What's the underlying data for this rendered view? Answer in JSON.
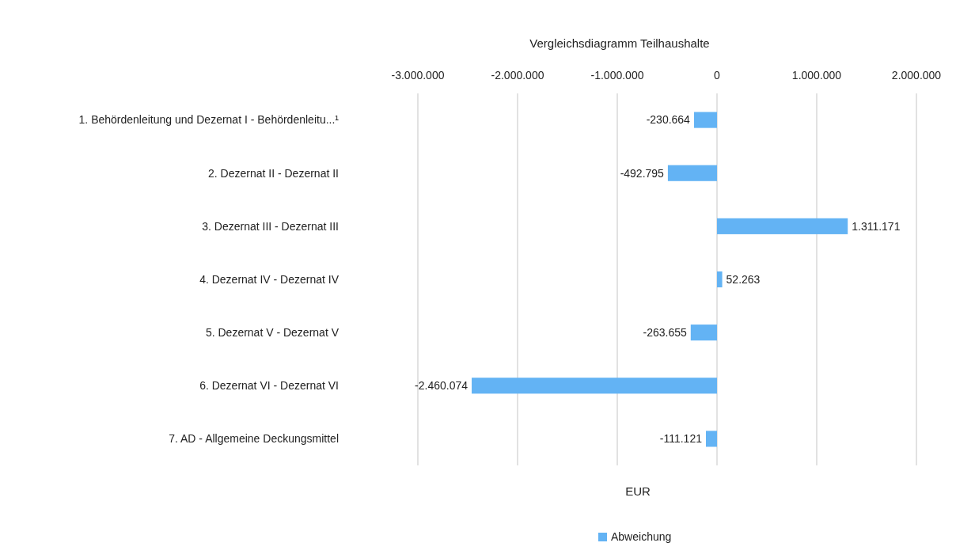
{
  "chart_data": {
    "type": "bar",
    "orientation": "horizontal",
    "title": "Vergleichsdiagramm Teilhaushalte",
    "xlabel": "EUR",
    "categories": [
      "1. Behördenleitung und Dezernat I - Behördenleitu...¹",
      "2. Dezernat II - Dezernat II",
      "3. Dezernat III - Dezernat III",
      "4. Dezernat IV - Dezernat IV",
      "5. Dezernat V - Dezernat V",
      "6. Dezernat VI - Dezernat VI",
      "7. AD - Allgemeine Deckungsmittel"
    ],
    "series": [
      {
        "name": "Abweichung",
        "color": "#63b3f4",
        "values": [
          -230664,
          -492795,
          1311171,
          52263,
          -263655,
          -2460074,
          -111121
        ],
        "value_labels": [
          "-230.664",
          "-492.795",
          "1.311.171",
          "52.263",
          "-263.655",
          "-2.460.074",
          "-111.121"
        ]
      }
    ],
    "xlim": [
      -3000000,
      2000000
    ],
    "xticks": [
      {
        "value": -3000000,
        "label": "-3.000.000"
      },
      {
        "value": -2000000,
        "label": "-2.000.000"
      },
      {
        "value": -1000000,
        "label": "-1.000.000"
      },
      0,
      {
        "value": 1000000,
        "label": "1.000.000"
      },
      {
        "value": 2000000,
        "label": "2.000.000"
      }
    ],
    "grid": "x",
    "legend": "bottom"
  }
}
